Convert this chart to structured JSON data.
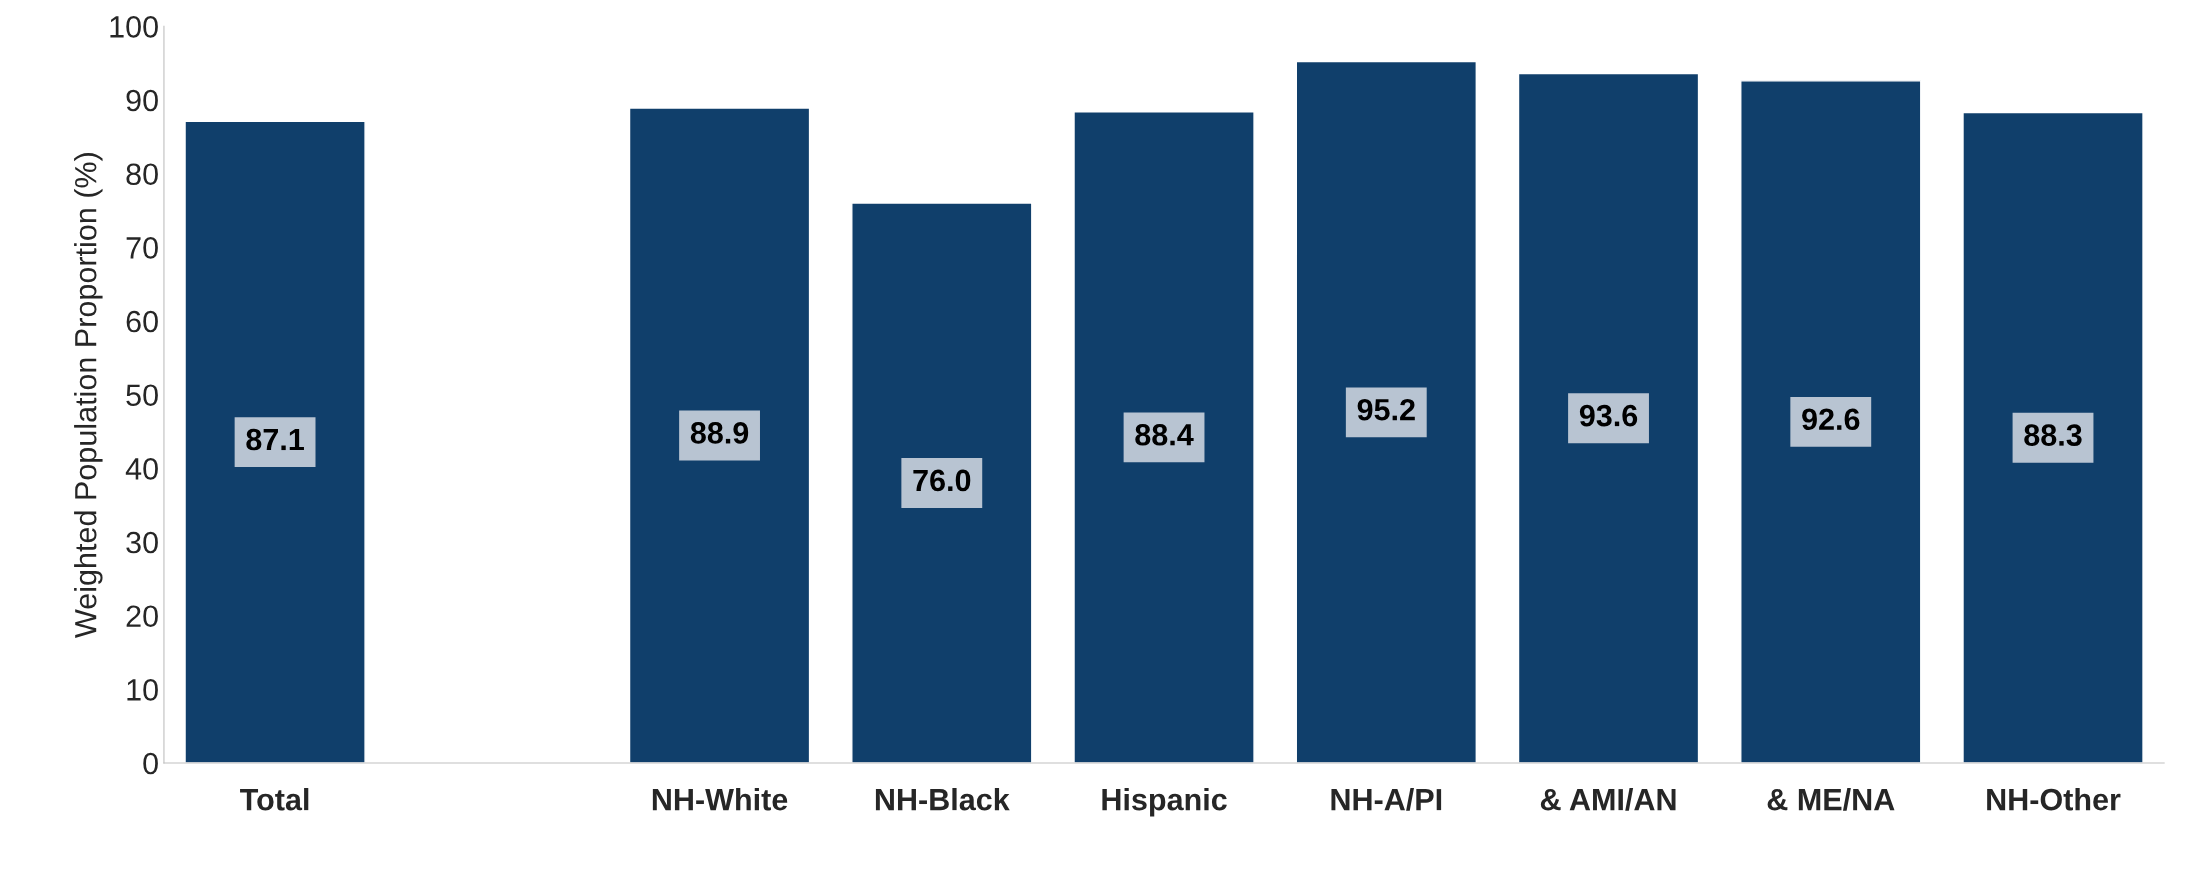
{
  "chart_data": {
    "type": "bar",
    "ylabel": "Weighted Population Proportion (%)",
    "categories": [
      "Total",
      null,
      "NH-White",
      "NH-Black",
      "Hispanic",
      "NH-A/PI",
      "& AMI/AN",
      "& ME/NA",
      "NH-Other"
    ],
    "values": [
      87.1,
      null,
      88.9,
      76.0,
      88.4,
      95.2,
      93.6,
      92.6,
      88.3
    ],
    "value_labels": [
      "87.1",
      null,
      "88.9",
      "76.0",
      "88.4",
      "95.2",
      "93.6",
      "92.6",
      "88.3"
    ],
    "color": "#103f6b",
    "ylim": [
      0,
      100
    ],
    "yticks": [
      0,
      10,
      20,
      30,
      40,
      50,
      60,
      70,
      80,
      90,
      100
    ],
    "grid": false,
    "legend": false
  }
}
